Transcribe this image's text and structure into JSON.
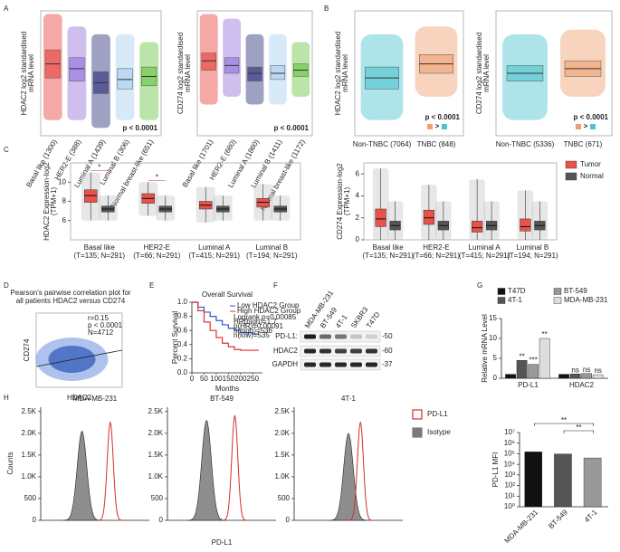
{
  "chart_data": [
    {
      "type": "box",
      "panel": "A",
      "ylabel": [
        "HDAC2 log2 standardised",
        "mRNA level"
      ],
      "categories": [
        "Basal like (1300)",
        "HER2-E (388)",
        "Luminal A (1439)",
        "Luminal B (306)",
        "Normal breast-like (651)"
      ],
      "colors": [
        "#e8403a",
        "#9370db",
        "#2b2f7a",
        "#a9cfee",
        "#66c43f"
      ],
      "lo": [
        -3,
        -3,
        -3.5,
        -3,
        -3
      ],
      "q1": [
        -0.3,
        -0.5,
        -1.3,
        -1,
        -0.8
      ],
      "median": [
        0.6,
        0.3,
        -0.6,
        -0.4,
        -0.2
      ],
      "q3": [
        1.5,
        1,
        0.1,
        0.3,
        0.4
      ],
      "hi": [
        3.8,
        3,
        2.5,
        2.5,
        2
      ],
      "ylim": [
        -4,
        4
      ],
      "annotation": "p < 0.0001"
    },
    {
      "type": "box",
      "ylabel": [
        "CD274 log2 standardised",
        "mRNA level"
      ],
      "categories": [
        "Basal like (1701)",
        "HER2-E (680)",
        "Luminal A (1860)",
        "Luminal B (1411)",
        "Normal breast-like (1172)"
      ],
      "colors": [
        "#e8403a",
        "#9370db",
        "#2b2f7a",
        "#a9cfee",
        "#66c43f"
      ],
      "lo": [
        -2,
        -1.5,
        -2,
        -2,
        -1.5
      ],
      "q1": [
        0.2,
        0,
        -0.5,
        -0.4,
        -0.2
      ],
      "median": [
        0.8,
        0.5,
        0,
        0,
        0.2
      ],
      "q3": [
        1.3,
        1,
        0.4,
        0.5,
        0.6
      ],
      "hi": [
        3.8,
        3.5,
        2.5,
        2.5,
        2
      ],
      "ylim": [
        -4,
        4
      ],
      "annotation": "p < 0.0001"
    },
    {
      "type": "box",
      "panel": "B",
      "ylabel": [
        "HDAC2 log2 standardised",
        "mRNA level"
      ],
      "categories": [
        "Non-TNBC (7064)",
        "TNBC (848)"
      ],
      "colors": [
        "#4cc3cf",
        "#f0a070"
      ],
      "lo": [
        -3,
        -1.5
      ],
      "q1": [
        -1,
        0
      ],
      "median": [
        -0.3,
        0.6
      ],
      "q3": [
        0.4,
        1.2
      ],
      "hi": [
        2.5,
        3
      ],
      "ylim": [
        -4,
        4
      ],
      "annotation": "p < 0.0001",
      "order_mark": ">"
    },
    {
      "type": "box",
      "ylabel": [
        "CD274 log2 standardised",
        "mRNA level"
      ],
      "categories": [
        "Non-TNBC (5336)",
        "TNBC (671)"
      ],
      "colors": [
        "#4cc3cf",
        "#f0a070"
      ],
      "lo": [
        -3,
        -1.5
      ],
      "q1": [
        -0.5,
        -0.2
      ],
      "median": [
        0,
        0.3
      ],
      "q3": [
        0.5,
        0.8
      ],
      "hi": [
        2.5,
        2.8
      ],
      "ylim": [
        -4,
        4
      ],
      "annotation": "p < 0.0001",
      "order_mark": ">"
    },
    {
      "type": "grouped_box",
      "panel": "C",
      "ylabel": [
        "HDAC2 Expression-log2",
        "(TPM+1)"
      ],
      "categories": [
        "Basal like",
        "HER2-E",
        "Luminal A",
        "Luminal B"
      ],
      "sample_sizes": [
        "(T=135; N=291)",
        "(T=66; N=291)",
        "(T=415; N=291)",
        "(T=194; N=291)"
      ],
      "ylim": [
        4,
        12
      ],
      "yticks": [
        6,
        8,
        10
      ],
      "series": [
        {
          "name": "Tumor",
          "color": "#e8524a",
          "lo": [
            6,
            6.5,
            5.8,
            6
          ],
          "q1": [
            7.9,
            7.8,
            7.2,
            7.4
          ],
          "median": [
            8.6,
            8.3,
            7.6,
            7.9
          ],
          "q3": [
            9.2,
            8.8,
            8,
            8.3
          ],
          "hi": [
            11,
            10,
            9.5,
            9.8
          ]
        },
        {
          "name": "Normal",
          "color": "#555555",
          "lo": [
            6,
            6,
            6,
            6
          ],
          "q1": [
            6.9,
            6.9,
            6.9,
            6.9
          ],
          "median": [
            7.2,
            7.2,
            7.2,
            7.2
          ],
          "q3": [
            7.5,
            7.5,
            7.5,
            7.5
          ],
          "hi": [
            8.6,
            8.6,
            8.6,
            8.6
          ]
        }
      ],
      "significance": [
        "*",
        "*",
        null,
        null
      ]
    },
    {
      "type": "grouped_box",
      "ylabel": [
        "CD274 Expression-log2",
        "(TPM+1)"
      ],
      "categories": [
        "Basal like",
        "HER2-E",
        "Luminal A",
        "Luminal B"
      ],
      "sample_sizes": [
        "(T=135; N=291)",
        "(T=66; N=291)",
        "(T=415; N=291)",
        "(T=194; N=291)"
      ],
      "ylim": [
        0,
        7
      ],
      "yticks": [
        0,
        2,
        4,
        6
      ],
      "series": [
        {
          "color": "#e8524a",
          "lo": [
            0,
            0,
            0,
            0
          ],
          "q1": [
            1.2,
            1.4,
            0.7,
            0.8
          ],
          "median": [
            1.9,
            2,
            1.1,
            1.2
          ],
          "q3": [
            2.8,
            2.7,
            1.7,
            1.9
          ],
          "hi": [
            6.5,
            5,
            5.5,
            4.5
          ]
        },
        {
          "color": "#555555",
          "lo": [
            0,
            0,
            0,
            0
          ],
          "q1": [
            0.9,
            0.9,
            0.9,
            0.9
          ],
          "median": [
            1.3,
            1.3,
            1.3,
            1.3
          ],
          "q3": [
            1.7,
            1.7,
            1.7,
            1.7
          ],
          "hi": [
            3.5,
            3.5,
            3.5,
            3.5
          ]
        }
      ]
    },
    {
      "type": "scatter",
      "panel": "D",
      "title": [
        "Pearson's pairwise correlation plot for",
        "all patients HDAC2 versus CD274"
      ],
      "xlabel": "HDAC2",
      "ylabel": "CD274",
      "annotations": [
        "r=0.15",
        "p < 0.0001",
        "N=4712"
      ]
    },
    {
      "type": "line",
      "panel": "E",
      "title": "Overall Survival",
      "xlabel": "Months",
      "ylabel": "Percent Survival",
      "x": [
        0,
        25,
        50,
        75,
        100,
        125,
        150,
        175,
        200,
        250,
        275
      ],
      "series": [
        {
          "name": "Low HDAC2 Group",
          "color": "#3355cc",
          "values": [
            1,
            0.93,
            0.86,
            0.8,
            0.74,
            0.68,
            0.63,
            0.6,
            0.57,
            0.55,
            0.55
          ]
        },
        {
          "name": "High HDAC2 Group",
          "color": "#e03030",
          "values": [
            1,
            0.88,
            0.72,
            0.6,
            0.5,
            0.42,
            0.37,
            0.33,
            0.32,
            0.32,
            0.32
          ]
        }
      ],
      "stats": [
        "Logrank p=0.00085",
        "HR(high)=1.7",
        "p(HR)=0.00091",
        "n(high)=536",
        "n(low)=535"
      ],
      "xlim": [
        0,
        290
      ],
      "xticks": [
        0,
        50,
        100,
        150,
        200,
        250
      ],
      "ylim": [
        0,
        1
      ],
      "yticks": [
        {
          "value": 0,
          "label": "0.0"
        },
        0.2,
        0.4,
        0.6,
        0.8,
        {
          "value": 1,
          "label": "1.0"
        }
      ],
      "step": true
    },
    {
      "type": "blot",
      "panel": "F",
      "lanes": [
        "MDA-MB-231",
        "BT-549",
        "4T-1",
        "SKBR3",
        "T47D"
      ],
      "rows": [
        "PD-L1:",
        "HDAC2",
        "GAPDH"
      ],
      "markers": [
        "-50",
        "-60",
        "-37"
      ]
    },
    {
      "type": "bar",
      "panel": "G",
      "ylabel": "Relative mRNA Level",
      "categories": [
        "PD-L1",
        "HDAC2"
      ],
      "series": [
        {
          "name": "T47D",
          "color": "#111111",
          "values": [
            1,
            1
          ],
          "sig": [
            null,
            null
          ]
        },
        {
          "name": "4T-1",
          "color": "#555555",
          "values": [
            4.5,
            1.1
          ],
          "sig": [
            "**",
            "ns"
          ]
        },
        {
          "name": "BT-549",
          "color": "#999999",
          "values": [
            3.5,
            1.2
          ],
          "sig": [
            "***",
            "ns"
          ]
        },
        {
          "name": "MDA-MB-231",
          "color": "#dddddd",
          "values": [
            10,
            0.9
          ],
          "sig": [
            "**",
            "ns"
          ]
        }
      ],
      "ylim": [
        0,
        15
      ],
      "yticks": [
        0,
        5,
        10,
        15
      ]
    },
    {
      "type": "flow",
      "panel": "H",
      "ylabel": "Counts",
      "xlabel": "PD-L1",
      "xlim": [
        0,
        5
      ],
      "ylim": [
        0,
        2600
      ],
      "yticks": [
        0,
        500,
        {
          "value": 1000,
          "label": "1.0K"
        },
        {
          "value": 1500,
          "label": "1.5K"
        },
        {
          "value": 2000,
          "label": "2.0K"
        },
        {
          "value": 2500,
          "label": "2.5K"
        }
      ],
      "legend": [
        {
          "name": "PD-L1",
          "color": "#d03030"
        },
        {
          "name": "Isotype",
          "color": "#7a7a7a"
        }
      ],
      "panels": [
        {
          "title": "MDA-MB-231",
          "isotype_peak": 1.9,
          "isotype_height": 2050,
          "pdl1_peak": 3.2,
          "pdl1_height": 2250
        },
        {
          "title": "BT-549",
          "isotype_peak": 1.8,
          "isotype_height": 2300,
          "pdl1_peak": 3.1,
          "pdl1_height": 2400
        },
        {
          "title": "4T-1",
          "isotype_peak": 2.5,
          "isotype_height": 2000,
          "pdl1_peak": 3.05,
          "pdl1_height": 2250
        }
      ]
    },
    {
      "type": "bar",
      "ylabel": "PD-L1 MFI",
      "categories": [
        "MDA-MB-231",
        "BT-549",
        "4T-1"
      ],
      "series": [
        {
          "colors": [
            "#111111",
            "#555555",
            "#999999"
          ],
          "values": [
            150000,
            95000,
            40000
          ]
        }
      ],
      "log": true,
      "ylim": [
        1,
        10000000
      ],
      "yticks": [
        {
          "value": 1,
          "label": "10⁰"
        },
        {
          "value": 10,
          "label": "10¹"
        },
        {
          "value": 100,
          "label": "10²"
        },
        {
          "value": 1000,
          "label": "10³"
        },
        {
          "value": 10000,
          "label": "10⁴"
        },
        {
          "value": 100000,
          "label": "10⁵"
        },
        {
          "value": 1000000,
          "label": "10⁶"
        },
        {
          "value": 10000000,
          "label": "10⁷"
        }
      ],
      "significance": [
        "**",
        "**"
      ]
    }
  ]
}
